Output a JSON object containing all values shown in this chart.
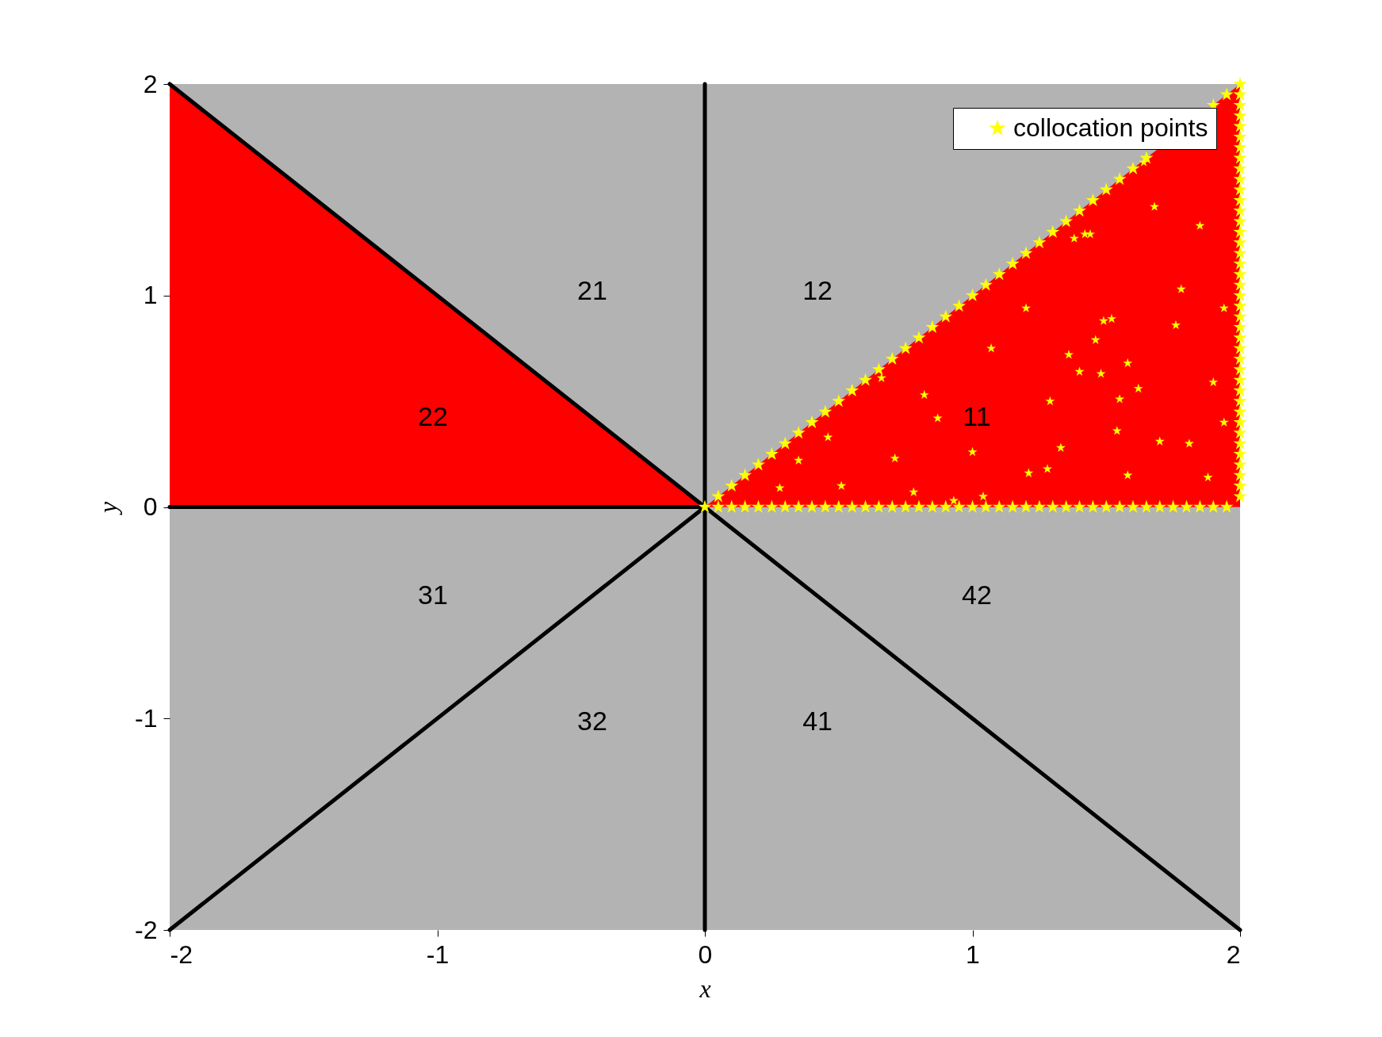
{
  "chart_data": {
    "type": "scatter",
    "xlabel": "x",
    "ylabel": "y",
    "xlim": [
      -2,
      2
    ],
    "ylim": [
      -2,
      2
    ],
    "xticks": [
      -2,
      -1,
      0,
      1,
      2
    ],
    "yticks": [
      -2,
      -1,
      0,
      1,
      2
    ],
    "grid": false,
    "legend": "top right",
    "series": [
      {
        "type": "area",
        "color": "#ff0000",
        "x": [
          -2,
          0
        ],
        "values": [
          2,
          0
        ]
      },
      {
        "type": "area",
        "color": "#ff0000",
        "x": [
          0,
          2
        ],
        "values": [
          0,
          2
        ]
      },
      {
        "type": "line",
        "color": "#000000",
        "x": [
          -2,
          2
        ],
        "values": [
          2,
          -2
        ]
      },
      {
        "type": "line",
        "color": "#000000",
        "x": [
          -2,
          0
        ],
        "values": [
          -2,
          0
        ]
      },
      {
        "type": "line",
        "color": "#000000",
        "x": [
          0,
          0
        ],
        "values": [
          -2,
          2
        ]
      },
      {
        "type": "line",
        "color": "#000000",
        "x": [
          -2,
          0
        ],
        "values": [
          0,
          0
        ]
      },
      {
        "color": "#ffff00",
        "marker": "star",
        "x": [
          0,
          0.05,
          0.1,
          0.15,
          0.2,
          0.25,
          0.3,
          0.35,
          0.4,
          0.45,
          0.5,
          0.55,
          0.6,
          0.65,
          0.7,
          0.75,
          0.8,
          0.85,
          0.9,
          0.95,
          1,
          1.05,
          1.1,
          1.15,
          1.2,
          1.25,
          1.3,
          1.35,
          1.4,
          1.45,
          1.5,
          1.55,
          1.6,
          1.65,
          1.7,
          1.75,
          1.8,
          1.85,
          1.9,
          1.95,
          2,
          2,
          2,
          2,
          2,
          2,
          2,
          2,
          2,
          2,
          2,
          2,
          2,
          2,
          2,
          2,
          2,
          2,
          2,
          2,
          2,
          2,
          2,
          2,
          2,
          2,
          2,
          2,
          2,
          2,
          2,
          2,
          2,
          2,
          2,
          2,
          2,
          2,
          2,
          2,
          0.05,
          0.1,
          0.15,
          0.2,
          0.25,
          0.3,
          0.35,
          0.4,
          0.45,
          0.5,
          0.55,
          0.6,
          0.65,
          0.7,
          0.75,
          0.8,
          0.85,
          0.9,
          0.95,
          1,
          1.05,
          1.1,
          1.15,
          1.2,
          1.25,
          1.3,
          1.35,
          1.4,
          1.45,
          1.5,
          1.55,
          1.6,
          1.65,
          1.7,
          1.75,
          1.8,
          1.85,
          1.9,
          1.95
        ],
        "values": [
          0,
          0.05,
          0.1,
          0.15,
          0.2,
          0.25,
          0.3,
          0.35,
          0.4,
          0.45,
          0.5,
          0.55,
          0.6,
          0.65,
          0.7,
          0.75,
          0.8,
          0.85,
          0.9,
          0.95,
          1,
          1.05,
          1.1,
          1.15,
          1.2,
          1.25,
          1.3,
          1.35,
          1.4,
          1.45,
          1.5,
          1.55,
          1.6,
          1.65,
          null,
          null,
          null,
          null,
          1.9,
          1.95,
          2,
          0.05,
          0.1,
          0.15,
          0.2,
          0.25,
          0.3,
          0.35,
          0.4,
          0.45,
          0.5,
          0.55,
          0.6,
          0.65,
          0.7,
          0.75,
          0.8,
          0.85,
          0.9,
          0.95,
          1,
          1.05,
          1.1,
          1.15,
          1.2,
          1.25,
          1.3,
          1.35,
          1.4,
          1.45,
          1.5,
          1.55,
          1.6,
          1.65,
          1.7,
          1.75,
          1.8,
          1.85,
          1.9,
          1.95,
          0,
          0,
          0,
          0,
          0,
          0,
          0,
          0,
          0,
          0,
          0,
          0,
          0,
          0,
          0,
          0,
          0,
          0,
          0,
          0,
          0,
          0,
          0,
          0,
          0,
          0,
          0,
          0,
          0,
          0,
          0,
          0,
          0,
          0,
          0,
          0,
          0,
          0,
          0
        ]
      },
      {
        "type": "scatter",
        "name": "collocation points",
        "color": "#ffff00",
        "marker": "star",
        "x": [
          0.28,
          0.35,
          0.46,
          0.51,
          0.66,
          0.71,
          0.78,
          0.82,
          0.87,
          0.93,
          1.0,
          1.04,
          1.07,
          1.2,
          1.21,
          1.28,
          1.29,
          1.33,
          1.36,
          1.38,
          1.4,
          1.42,
          1.44,
          1.46,
          1.48,
          1.49,
          1.52,
          1.54,
          1.55,
          1.58,
          1.58,
          1.62,
          1.64,
          1.68,
          1.7,
          1.76,
          1.78,
          1.81,
          1.85,
          1.88,
          1.9,
          1.94,
          1.94
        ],
        "values": [
          0.09,
          0.22,
          0.33,
          0.1,
          0.61,
          0.23,
          0.07,
          0.53,
          0.42,
          0.03,
          0.26,
          0.05,
          0.75,
          0.94,
          0.16,
          0.18,
          0.5,
          0.28,
          0.72,
          1.27,
          0.64,
          1.29,
          1.29,
          0.79,
          0.63,
          0.88,
          0.89,
          0.36,
          0.51,
          0.15,
          0.68,
          0.56,
          1.63,
          1.42,
          0.31,
          0.86,
          1.03,
          0.3,
          1.33,
          0.14,
          0.59,
          0.94,
          0.4
        ]
      }
    ],
    "annotations": [
      "11",
      "12",
      "21",
      "22",
      "31",
      "32",
      "41",
      "42"
    ]
  }
}
